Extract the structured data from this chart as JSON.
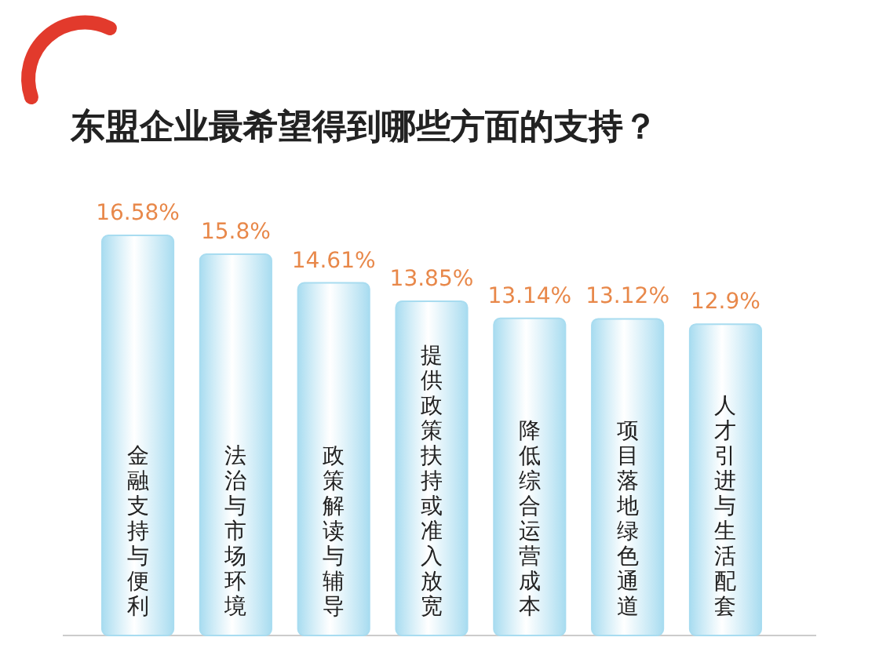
{
  "chart_data": {
    "type": "bar",
    "title": "东盟企业最希望得到哪些方面的支持？",
    "categories": [
      "金融支持与便利",
      "法治与市场环境",
      "政策解读与辅导",
      "提供政策扶持或准入放宽",
      "降低综合运营成本",
      "项目落地绿色通道",
      "人才引进与生活配套"
    ],
    "values": [
      16.58,
      15.8,
      14.61,
      13.85,
      13.14,
      13.12,
      12.9
    ],
    "value_labels": [
      "16.58%",
      "15.8%",
      "14.61%",
      "13.85%",
      "13.14%",
      "13.12%",
      "12.9%"
    ],
    "color": "#a8dcf0"
  }
}
